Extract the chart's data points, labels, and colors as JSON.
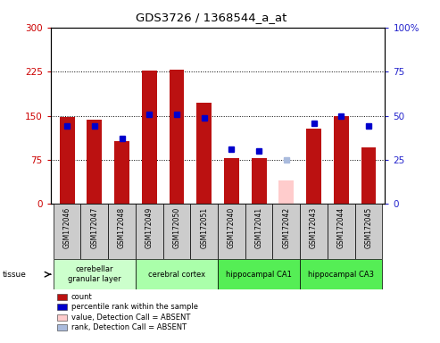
{
  "title": "GDS3726 / 1368544_a_at",
  "samples": [
    "GSM172046",
    "GSM172047",
    "GSM172048",
    "GSM172049",
    "GSM172050",
    "GSM172051",
    "GSM172040",
    "GSM172041",
    "GSM172042",
    "GSM172043",
    "GSM172044",
    "GSM172045"
  ],
  "bar_heights": [
    148,
    143,
    107,
    227,
    228,
    172,
    78,
    78,
    40,
    128,
    150,
    97
  ],
  "bar_colors": [
    "#bb1111",
    "#bb1111",
    "#bb1111",
    "#bb1111",
    "#bb1111",
    "#bb1111",
    "#bb1111",
    "#bb1111",
    "#ffcccc",
    "#bb1111",
    "#bb1111",
    "#bb1111"
  ],
  "rank_values": [
    44,
    44,
    37,
    51,
    51,
    49,
    31,
    30,
    25,
    46,
    50,
    44
  ],
  "rank_colors": [
    "#0000cc",
    "#0000cc",
    "#0000cc",
    "#0000cc",
    "#0000cc",
    "#0000cc",
    "#0000cc",
    "#0000cc",
    "#aabbdd",
    "#0000cc",
    "#0000cc",
    "#0000cc"
  ],
  "ylim_left": [
    0,
    300
  ],
  "ylim_right": [
    0,
    100
  ],
  "yticks_left": [
    0,
    75,
    150,
    225,
    300
  ],
  "yticks_right": [
    0,
    25,
    50,
    75,
    100
  ],
  "hlines": [
    75,
    150,
    225
  ],
  "groups": [
    {
      "label": "cerebellar\ngranular layer",
      "start": 0,
      "end": 3,
      "color": "#ccffcc"
    },
    {
      "label": "cerebral cortex",
      "start": 3,
      "end": 6,
      "color": "#aaffaa"
    },
    {
      "label": "hippocampal CA1",
      "start": 6,
      "end": 9,
      "color": "#55ee55"
    },
    {
      "label": "hippocampal CA3",
      "start": 9,
      "end": 12,
      "color": "#55ee55"
    }
  ],
  "legend_items": [
    {
      "label": "count",
      "color": "#bb1111",
      "marker": "s"
    },
    {
      "label": "percentile rank within the sample",
      "color": "#0000cc",
      "marker": "s"
    },
    {
      "label": "value, Detection Call = ABSENT",
      "color": "#ffcccc",
      "marker": "s"
    },
    {
      "label": "rank, Detection Call = ABSENT",
      "color": "#aabbdd",
      "marker": "s"
    }
  ],
  "left_tick_color": "#cc0000",
  "right_tick_color": "#2222cc",
  "bar_width": 0.55,
  "sample_box_color": "#cccccc",
  "plot_bg": "#ffffff",
  "fig_bg": "#ffffff"
}
